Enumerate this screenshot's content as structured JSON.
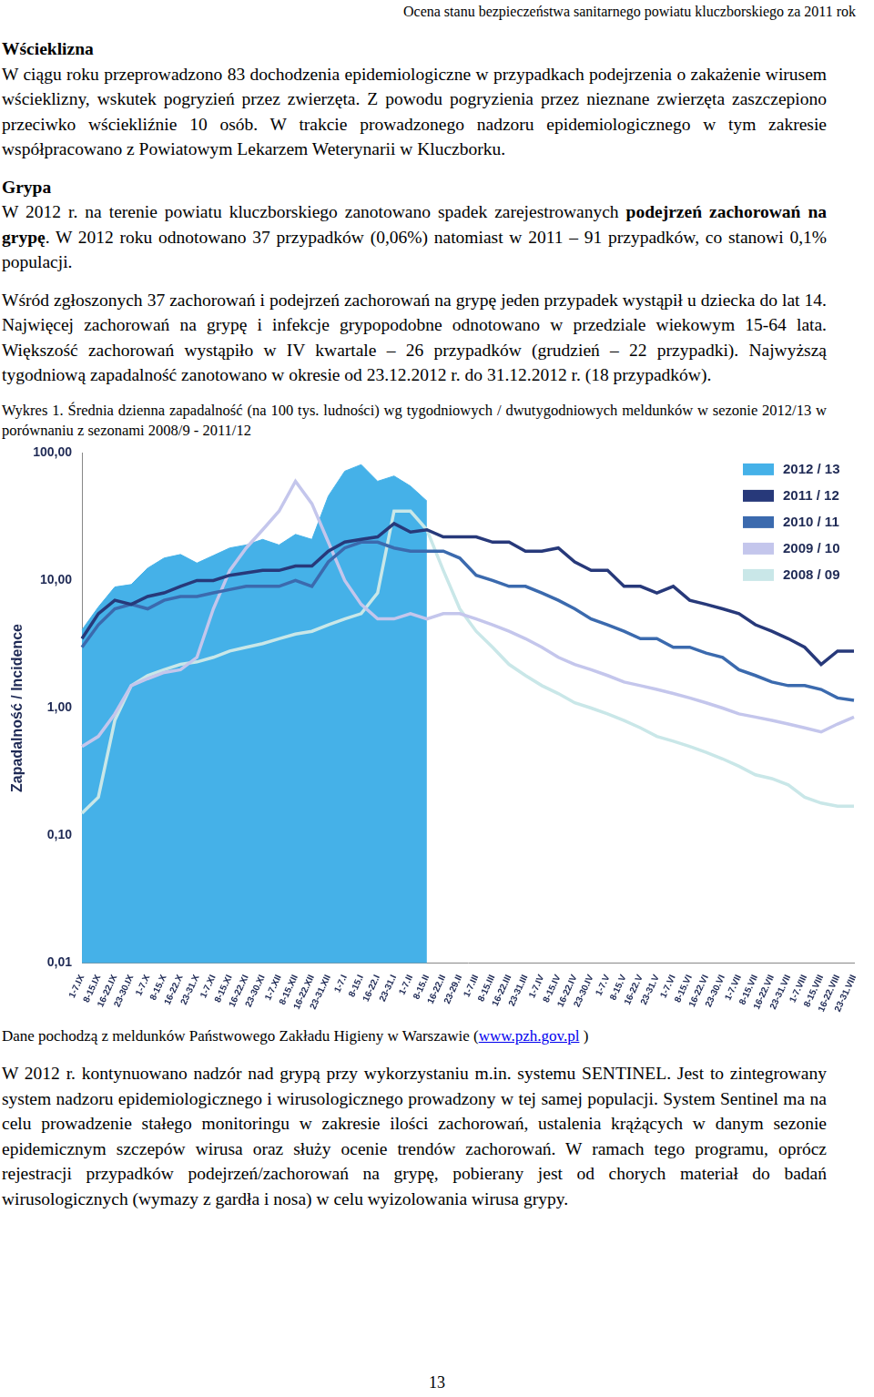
{
  "header": "Ocena stanu  bezpieczeństwa sanitarnego powiatu kluczborskiego za 2011 rok",
  "sections": [
    {
      "heading": "Wścieklizna",
      "paragraphs": [
        [
          {
            "text": "W ciągu roku przeprowadzono 83 dochodzenia epidemiologiczne w przypadkach podejrzenia o zakażenie wirusem wścieklizny, wskutek pogryzień przez zwierzęta. Z powodu pogryzienia przez nieznane zwierzęta zaszczepiono przeciwko wściekliźnie 10 osób. W trakcie prowadzonego nadzoru epidemiologicznego w tym zakresie współpracowano z Powiatowym Lekarzem Weterynarii w Kluczborku.",
            "bold": false
          }
        ]
      ]
    },
    {
      "heading": "Grypa",
      "paragraphs": [
        [
          {
            "text": " W 2012 r. na terenie powiatu kluczborskiego zanotowano spadek zarejestrowanych ",
            "bold": false
          },
          {
            "text": "podejrzeń zachorowań na grypę",
            "bold": true
          },
          {
            "text": ". W 2012 roku odnotowano 37 przypadków (0,06%) natomiast w 2011 – 91 przypadków, co stanowi 0,1% populacji.",
            "bold": false
          }
        ],
        [
          {
            "text": "Wśród zgłoszonych 37 zachorowań i podejrzeń zachorowań na grypę jeden przypadek wystąpił u dziecka do lat 14. Najwięcej zachorowań na grypę i infekcje grypopodobne odnotowano w przedziale wiekowym 15-64 lata. Większość zachorowań wystąpiło w IV kwartale – 26 przypadków (grudzień – 22 przypadki). Najwyższą tygodniową zapadalność zanotowano w okresie od 23.12.2012 r. do 31.12.2012 r. (18 przypadków).",
            "bold": false
          }
        ]
      ]
    }
  ],
  "figure_caption": "Wykres 1. Średnia dzienna zapadalność (na 100 tys. ludności) wg tygodniowych / dwutygodniowych meldunków w sezonie 2012/13 w porównaniu z sezonami 2008/9 - 2011/12",
  "chart_data": {
    "type": "line",
    "y_label": "Zapadalność / Incidence",
    "log": "y",
    "grid": false,
    "legend": "top right",
    "categories": [
      "1-7.IX",
      "8-15.IX",
      "16-22.IX",
      "23-30.IX",
      "1-7.X",
      "8-15.X",
      "16-22.X",
      "23-31.X",
      "1-7.XI",
      "8-15.XI",
      "16-22.XI",
      "23-30.XI",
      "1-7.XII",
      "8-15.XII",
      "16-22.XII",
      "23-31.XII",
      "1-7.I",
      "8-15.I",
      "16-22.I",
      "23-31.I",
      "1-7.II",
      "8-15.II",
      "16-22.II",
      "23-29.II",
      "1-7.III",
      "8-15.III",
      "16-22.III",
      "23-31.III",
      "1-7.IV",
      "8-15.IV",
      "16-22.IV",
      "23-30.IV",
      "1-7.V",
      "8-15.V",
      "16-22.V",
      "23-31.V",
      "1-7.VI",
      "8-15.VI",
      "16-22.VI",
      "23-30.VI",
      "1-7.VII",
      "8-15.VII",
      "16-22.VII",
      "23-31.VII",
      "1-7.VIII",
      "8-15.VIII",
      "16-22.VIII",
      "23-31.VIII"
    ],
    "ylim": [
      0.01,
      100
    ],
    "yticks": [
      {
        "value": 0.01,
        "label": "0,01"
      },
      {
        "value": 0.1,
        "label": "0,10"
      },
      {
        "value": 1,
        "label": "1,00"
      },
      {
        "value": 10,
        "label": "10,00"
      },
      {
        "value": 100,
        "label": "100,00"
      }
    ],
    "series": [
      {
        "name": "2012 / 13",
        "type": "area",
        "color": "#45b1e8",
        "values": [
          4.1,
          6.2,
          8.9,
          9.3,
          12.5,
          15,
          16,
          13.7,
          15.7,
          18,
          19,
          21,
          19,
          23,
          21,
          46,
          72,
          81,
          60,
          66,
          55,
          42,
          null,
          null,
          null,
          null,
          null,
          null,
          null,
          null,
          null,
          null,
          null,
          null,
          null,
          null,
          null,
          null,
          null,
          null,
          null,
          null,
          null,
          null,
          null,
          null,
          null,
          null
        ]
      },
      {
        "name": "2011 / 12",
        "type": "line",
        "color": "#27397a",
        "values": [
          3.5,
          5.5,
          7,
          6.5,
          7.5,
          8,
          9,
          10,
          10,
          11,
          11.5,
          12,
          12,
          13,
          13,
          17,
          20,
          21,
          22,
          28,
          24,
          25,
          22,
          22,
          22,
          20,
          20,
          17,
          17,
          18,
          14,
          12,
          12,
          9,
          9,
          8,
          9,
          7,
          6.5,
          6,
          5.5,
          4.5,
          4,
          3.5,
          3,
          2.2,
          2.8,
          2.8
        ]
      },
      {
        "name": "2010 / 11",
        "type": "line",
        "color": "#3b6aae",
        "values": [
          3,
          4.5,
          6,
          6.5,
          6,
          7,
          7.5,
          7.5,
          8,
          8.5,
          9,
          9,
          9,
          10,
          9,
          14,
          18,
          20,
          20,
          18,
          17,
          17,
          17,
          15,
          11,
          10,
          9,
          9,
          8,
          7,
          6,
          5,
          4.5,
          4,
          3.5,
          3.5,
          3,
          3,
          2.7,
          2.5,
          2,
          1.8,
          1.6,
          1.5,
          1.5,
          1.4,
          1.2,
          1.15
        ]
      },
      {
        "name": "2009 / 10",
        "type": "line",
        "color": "#c4c6ec",
        "values": [
          0.5,
          0.6,
          0.9,
          1.5,
          1.7,
          1.9,
          2,
          2.5,
          6,
          12,
          18,
          25,
          35,
          60,
          40,
          20,
          10,
          6.5,
          5,
          5,
          5.5,
          5,
          5.5,
          5.5,
          5,
          4.5,
          4,
          3.5,
          3,
          2.5,
          2.2,
          2,
          1.8,
          1.6,
          1.5,
          1.4,
          1.3,
          1.2,
          1.1,
          1,
          0.9,
          0.85,
          0.8,
          0.75,
          0.7,
          0.65,
          0.75,
          0.85
        ]
      },
      {
        "name": "2008 / 09",
        "type": "line",
        "color": "#c9e7e8",
        "values": [
          0.15,
          0.2,
          0.8,
          1.5,
          1.8,
          2,
          2.2,
          2.3,
          2.5,
          2.8,
          3,
          3.2,
          3.5,
          3.8,
          4,
          4.5,
          5,
          5.5,
          8,
          35,
          35,
          25,
          12,
          6,
          4,
          3,
          2.2,
          1.8,
          1.5,
          1.3,
          1.1,
          1,
          0.9,
          0.8,
          0.7,
          0.6,
          0.55,
          0.5,
          0.45,
          0.4,
          0.35,
          0.3,
          0.28,
          0.25,
          0.2,
          0.18,
          0.17,
          0.17
        ]
      }
    ]
  },
  "source": {
    "before": "Dane pochodzą z meldunków Państwowego Zakładu Higieny w Warszawie (",
    "link": "www.pzh.gov.pl",
    "after": " )"
  },
  "closing_paragraph": "W 2012 r. kontynuowano nadzór nad grypą przy wykorzystaniu m.in. systemu SENTINEL. Jest to zintegrowany system nadzoru epidemiologicznego i wirusologicznego prowadzony w tej samej populacji. System Sentinel ma na celu prowadzenie stałego monitoringu w zakresie ilości zachorowań, ustalenia krążących w danym sezonie epidemicznym szczepów wirusa oraz służy ocenie trendów zachorowań. W ramach tego programu, oprócz rejestracji przypadków podejrzeń/zachorowań na grypę, pobierany jest od chorych materiał do badań wirusologicznych (wymazy z gardła i nosa) w celu wyizolowania wirusa grypy.",
  "page_number": 13
}
